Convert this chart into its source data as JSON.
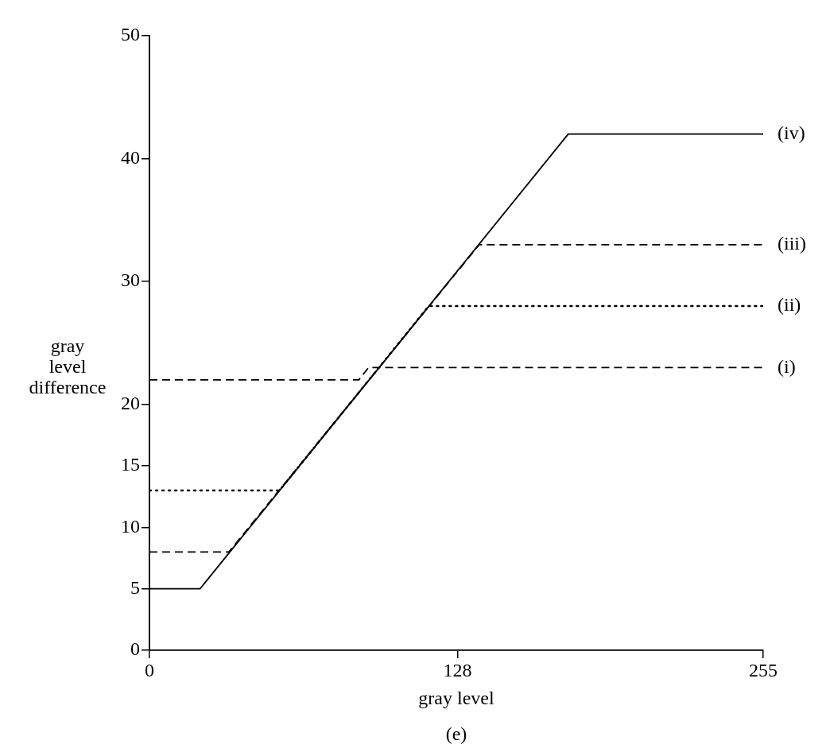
{
  "chart_data": {
    "type": "line",
    "xlabel": "gray level",
    "ylabel": "gray level difference",
    "xlim": [
      0,
      255
    ],
    "xticks": [
      0,
      128,
      255
    ],
    "ylim": [
      0,
      50
    ],
    "yticks": [
      0,
      5,
      10,
      15,
      20,
      30,
      40,
      50
    ],
    "grid": false,
    "legend": false,
    "marker": "none",
    "series": [
      {
        "name": "(i)",
        "color": "#000000",
        "line_style": "dashed",
        "x": [
          0,
          87,
          91,
          255
        ],
        "values": [
          22,
          22,
          23,
          23
        ]
      },
      {
        "name": "(ii)",
        "color": "#000000",
        "line_style": "dotted",
        "x": [
          0,
          54,
          116,
          255
        ],
        "values": [
          13,
          13,
          28,
          28
        ]
      },
      {
        "name": "(iii)",
        "color": "#000000",
        "line_style": "dashed",
        "x": [
          0,
          33,
          137,
          255
        ],
        "values": [
          8,
          8,
          33,
          33
        ]
      },
      {
        "name": "(iv)",
        "color": "#000000",
        "line_style": "solid",
        "x": [
          0,
          21,
          174,
          255
        ],
        "values": [
          5,
          5,
          42,
          42
        ]
      }
    ],
    "annotations": [
      "(e)"
    ]
  }
}
